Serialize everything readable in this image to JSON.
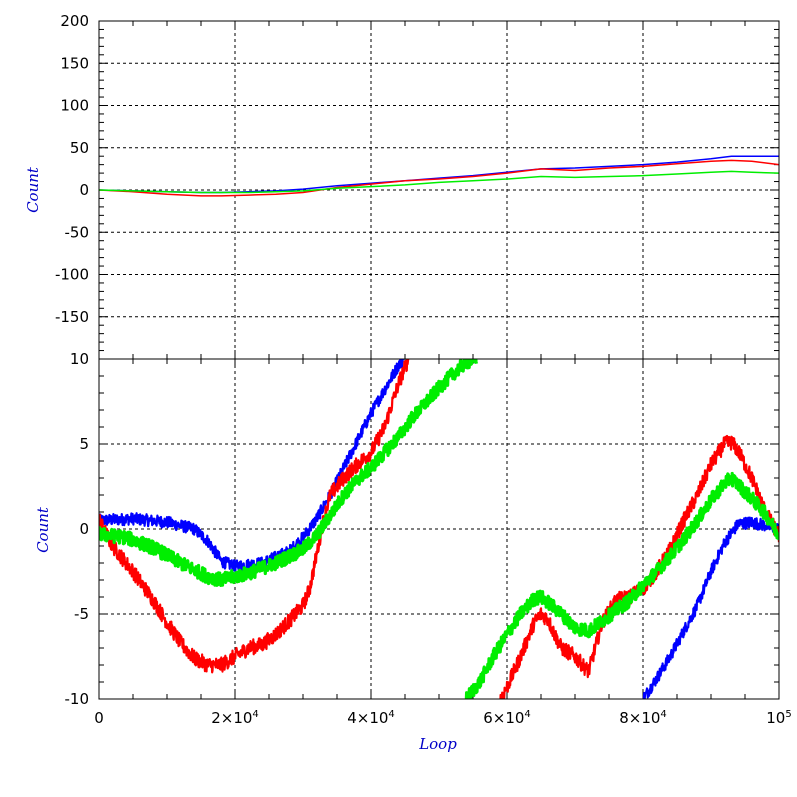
{
  "chart_data": [
    {
      "type": "line",
      "panel": "top",
      "title": "",
      "xlabel": "",
      "ylabel": "Count",
      "xlim": [
        0,
        100000
      ],
      "ylim": [
        -200,
        200
      ],
      "yticks": [
        200,
        150,
        100,
        50,
        0,
        -50,
        -100,
        -150
      ],
      "ytick_labels": [
        "200",
        "150",
        "100",
        "50",
        "0",
        "-50",
        "-100",
        "-150"
      ],
      "grid": true,
      "series": [
        {
          "color": "#0000ff",
          "x": [
            0,
            5000,
            10000,
            15000,
            18000,
            22000,
            26000,
            30000,
            35000,
            40000,
            45000,
            50000,
            55000,
            60000,
            65000,
            70000,
            75000,
            80000,
            85000,
            90000,
            93000,
            96000,
            100000
          ],
          "y": [
            0,
            -1,
            -2,
            -3,
            -3,
            -2,
            -1,
            1,
            5,
            8,
            11,
            14,
            17,
            21,
            25,
            26,
            28,
            30,
            33,
            37,
            40,
            40,
            40
          ]
        },
        {
          "color": "#ff0000",
          "x": [
            0,
            5000,
            10000,
            15000,
            18000,
            22000,
            26000,
            30000,
            35000,
            40000,
            45000,
            50000,
            55000,
            60000,
            65000,
            70000,
            75000,
            80000,
            85000,
            90000,
            93000,
            96000,
            100000
          ],
          "y": [
            0,
            -2,
            -5,
            -7,
            -7,
            -6,
            -5,
            -3,
            3,
            7,
            11,
            13,
            16,
            20,
            25,
            23,
            26,
            28,
            31,
            34,
            35,
            34,
            30
          ]
        },
        {
          "color": "#00ee00",
          "x": [
            0,
            5000,
            10000,
            15000,
            18000,
            22000,
            26000,
            30000,
            35000,
            40000,
            45000,
            50000,
            55000,
            60000,
            65000,
            70000,
            75000,
            80000,
            85000,
            90000,
            93000,
            96000,
            100000
          ],
          "y": [
            0,
            -1,
            -2,
            -3,
            -3,
            -3,
            -2,
            -1,
            2,
            4,
            6,
            9,
            11,
            13,
            16,
            15,
            16,
            17,
            19,
            21,
            22,
            21,
            20
          ]
        }
      ]
    },
    {
      "type": "line",
      "panel": "bottom",
      "title": "",
      "xlabel": "Loop",
      "ylabel": "Count",
      "xlim": [
        0,
        100000
      ],
      "ylim": [
        -10,
        10
      ],
      "yticks": [
        10,
        5,
        0,
        -5,
        -10
      ],
      "ytick_labels": [
        "10",
        "5",
        "0",
        "-5",
        "-10"
      ],
      "xticks": [
        0,
        20000,
        40000,
        60000,
        80000,
        100000
      ],
      "xtick_labels": [
        {
          "base": "0",
          "sup": ""
        },
        {
          "base": "2×10",
          "sup": "4"
        },
        {
          "base": "4×10",
          "sup": "4"
        },
        {
          "base": "6×10",
          "sup": "4"
        },
        {
          "base": "8×10",
          "sup": "4"
        },
        {
          "base": "10",
          "sup": "5"
        }
      ],
      "grid": true,
      "series": [
        {
          "color": "#0000ff",
          "noise": 0.35,
          "segments": [
            {
              "x": [
                0,
                5000,
                10000,
                14000,
                16000,
                18000,
                20000,
                24000,
                28000,
                30000,
                32000,
                34000,
                36000,
                38000,
                40000,
                42000,
                44000,
                44800
              ],
              "y": [
                0.5,
                0.6,
                0.4,
                0,
                -0.7,
                -1.9,
                -2.2,
                -2,
                -1.3,
                -0.5,
                0.6,
                2,
                3.6,
                5.2,
                6.8,
                8.2,
                9.6,
                10
              ]
            },
            {
              "x": [
                80000,
                82000,
                84000,
                86000,
                88000,
                90000,
                92000,
                94000,
                96000,
                98000,
                100000
              ],
              "y": [
                -10,
                -8.8,
                -7.5,
                -6,
                -4.5,
                -2.5,
                -0.8,
                0.3,
                0.4,
                0.2,
                0
              ]
            }
          ]
        },
        {
          "color": "#ff0000",
          "noise": 0.45,
          "segments": [
            {
              "x": [
                0,
                2000,
                5000,
                8000,
                10000,
                12000,
                14000,
                16000,
                18000,
                20000,
                22000,
                24000,
                26000,
                28000,
                30000,
                31000,
                32000,
                33000,
                34000,
                36000,
                38000,
                40000,
                42000,
                44000,
                45500
              ],
              "y": [
                0.5,
                -1,
                -2.5,
                -4.2,
                -5.5,
                -6.7,
                -7.6,
                -8,
                -8,
                -7.5,
                -7,
                -6.8,
                -6.2,
                -5.4,
                -4.5,
                -3.5,
                -1.5,
                0.5,
                2,
                3,
                3.8,
                4.5,
                6,
                8.5,
                10
              ]
            },
            {
              "x": [
                59000,
                60000,
                62000,
                64000,
                65000,
                66000,
                67000,
                68000,
                70000,
                72000,
                74000,
                76000,
                78000,
                80000,
                82000,
                84000,
                86000,
                88000,
                90000,
                92000,
                93000,
                94000,
                96000,
                98000,
                100000
              ],
              "y": [
                -10,
                -9.3,
                -7.5,
                -5.5,
                -5,
                -5.3,
                -6.2,
                -7,
                -7.5,
                -8.4,
                -5.5,
                -4.2,
                -4,
                -3.5,
                -2.5,
                -1.2,
                0.5,
                2,
                3.8,
                5,
                5.1,
                4.6,
                3,
                1,
                -0.4
              ]
            }
          ]
        },
        {
          "color": "#00ee00",
          "noise": 0.4,
          "segments": [
            {
              "x": [
                0,
                4000,
                8000,
                12000,
                16000,
                18000,
                22000,
                26000,
                30000,
                32000,
                34000,
                36000,
                38000,
                40000,
                42000,
                44000,
                46000,
                48000,
                50000,
                52000,
                54000,
                55500
              ],
              "y": [
                -0.3,
                -0.5,
                -1.1,
                -2,
                -2.8,
                -3,
                -2.6,
                -2,
                -1.2,
                -0.4,
                0.8,
                2,
                2.9,
                3.6,
                4.5,
                5.4,
                6.5,
                7.4,
                8.3,
                9.1,
                9.8,
                10
              ]
            },
            {
              "x": [
                54000,
                56000,
                58000,
                60000,
                62000,
                64000,
                65000,
                66000,
                68000,
                70000,
                72000,
                74000,
                76000,
                78000,
                80000,
                82000,
                84000,
                86000,
                88000,
                90000,
                92000,
                93000,
                94000,
                96000,
                98000,
                100000
              ],
              "y": [
                -10,
                -9,
                -7.5,
                -6.2,
                -5,
                -4.1,
                -4,
                -4.3,
                -5,
                -5.8,
                -6,
                -5.4,
                -4.8,
                -4.2,
                -3.3,
                -2.5,
                -1.6,
                -0.6,
                0.5,
                1.7,
                2.7,
                3,
                2.6,
                1.8,
                0.9,
                -0.4
              ]
            }
          ]
        }
      ]
    }
  ]
}
